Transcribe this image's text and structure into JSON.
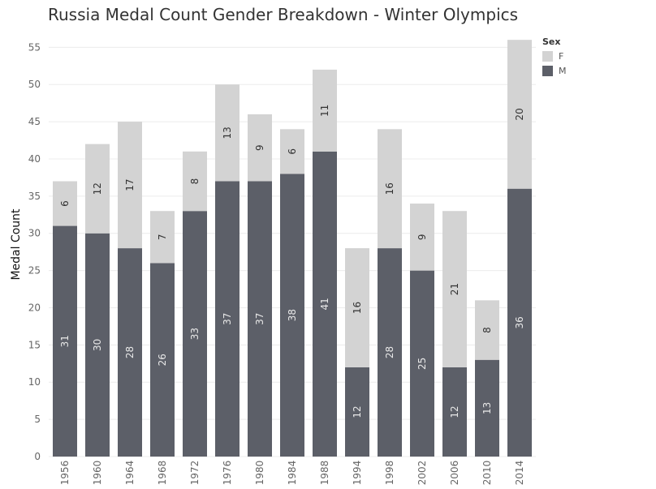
{
  "title": "Russia Medal Count Gender Breakdown - Winter Olympics",
  "legend": {
    "title": "Sex",
    "items": [
      {
        "label": "F",
        "color": "#d3d3d3"
      },
      {
        "label": "M",
        "color": "#5c5f68"
      }
    ]
  },
  "chart_data": {
    "type": "bar",
    "stacked": true,
    "categories": [
      "1956",
      "1960",
      "1964",
      "1968",
      "1972",
      "1976",
      "1980",
      "1984",
      "1988",
      "1994",
      "1998",
      "2002",
      "2006",
      "2010",
      "2014"
    ],
    "series": [
      {
        "name": "M",
        "color": "#5c5f68",
        "values": [
          31,
          30,
          28,
          26,
          33,
          37,
          37,
          38,
          41,
          12,
          28,
          25,
          12,
          13,
          36
        ]
      },
      {
        "name": "F",
        "color": "#d3d3d3",
        "values": [
          6,
          12,
          17,
          7,
          8,
          13,
          9,
          6,
          11,
          16,
          16,
          9,
          21,
          8,
          20
        ]
      }
    ],
    "ylabel": "Medal Count",
    "xlabel": "",
    "yticks": [
      0,
      5,
      10,
      15,
      20,
      25,
      30,
      35,
      40,
      45,
      50,
      55
    ],
    "ylim": [
      0,
      57
    ],
    "grid": true,
    "legend_position": "top-right"
  }
}
